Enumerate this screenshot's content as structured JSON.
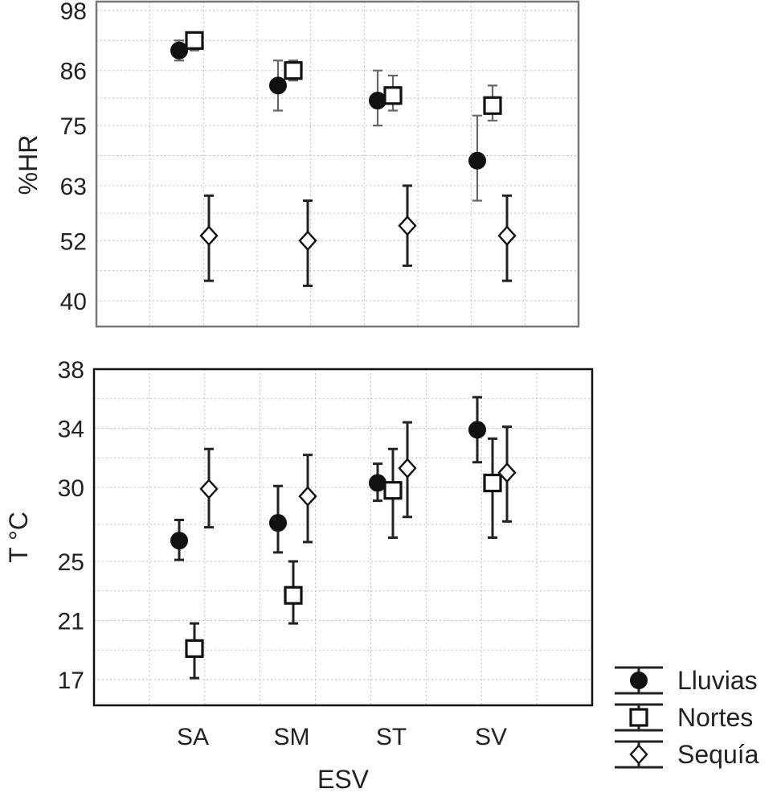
{
  "chart_data": [
    {
      "type": "scatter",
      "ylabel": "%HR",
      "xlabel": "",
      "ylim": [
        38,
        103
      ],
      "yticks": [
        40,
        52,
        63,
        75,
        86,
        98
      ],
      "categories": [
        "SA",
        "SM",
        "ST",
        "SV"
      ],
      "grid": true,
      "series": [
        {
          "name": "Lluvias",
          "marker": "filled-circle",
          "values": [
            90,
            83,
            80,
            68
          ],
          "err_low": [
            88,
            78,
            75,
            60
          ],
          "err_high": [
            92,
            88,
            86,
            77
          ]
        },
        {
          "name": "Nortes",
          "marker": "open-square",
          "values": [
            92,
            86,
            81,
            79
          ],
          "err_low": [
            90,
            84,
            78,
            76
          ],
          "err_high": [
            93,
            88,
            85,
            83
          ]
        },
        {
          "name": "Sequía",
          "marker": "open-diamond",
          "values": [
            53,
            52,
            55,
            53
          ],
          "err_low": [
            44,
            43,
            47,
            44
          ],
          "err_high": [
            61,
            60,
            63,
            61
          ]
        }
      ]
    },
    {
      "type": "scatter",
      "ylabel": "T °C",
      "xlabel": "ESV",
      "ylim": [
        14.3,
        38
      ],
      "yticks": [
        17,
        21,
        25,
        30,
        34,
        38
      ],
      "categories": [
        "SA",
        "SM",
        "ST",
        "SV"
      ],
      "grid": true,
      "legend": "bottom-right",
      "series": [
        {
          "name": "Lluvias",
          "marker": "filled-circle",
          "values": [
            26.4,
            27.6,
            30.3,
            33.9
          ],
          "err_low": [
            25.1,
            25.6,
            29.1,
            31.7
          ],
          "err_high": [
            27.8,
            30.1,
            31.6,
            36.1
          ]
        },
        {
          "name": "Nortes",
          "marker": "open-square",
          "values": [
            19.1,
            22.7,
            29.8,
            30.3
          ],
          "err_low": [
            17.1,
            20.8,
            26.6,
            26.6
          ],
          "err_high": [
            20.8,
            25.0,
            32.6,
            33.3
          ]
        },
        {
          "name": "Sequía",
          "marker": "open-diamond",
          "values": [
            29.9,
            29.4,
            31.3,
            31.0
          ],
          "err_low": [
            27.3,
            26.3,
            28.0,
            27.7
          ],
          "err_high": [
            32.6,
            32.2,
            34.4,
            34.1
          ]
        }
      ]
    }
  ]
}
